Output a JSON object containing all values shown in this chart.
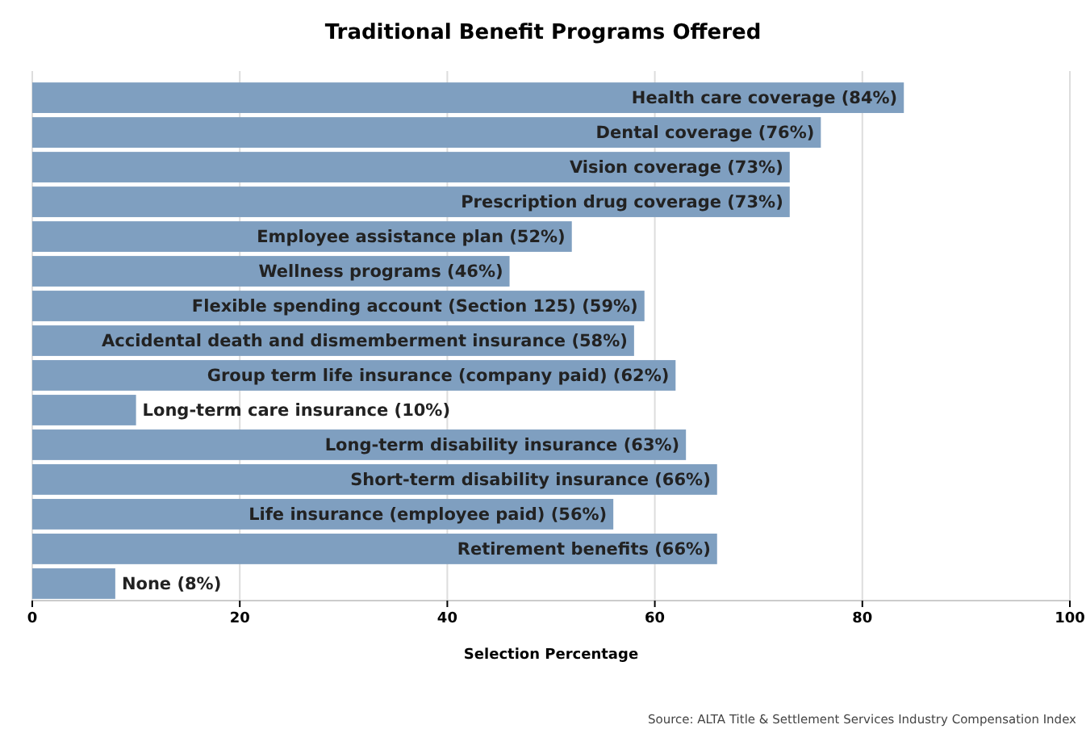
{
  "chart_data": {
    "type": "bar",
    "orientation": "horizontal",
    "title": "Traditional Benefit Programs Offered",
    "xlabel": "Selection Percentage",
    "categories": [
      "Health care coverage",
      "Dental coverage",
      "Vision coverage",
      "Prescription drug coverage",
      "Employee assistance plan",
      "Wellness programs",
      "Flexible spending account (Section 125)",
      "Accidental death and dismemberment insurance",
      "Group term life insurance (company paid)",
      "Long-term care insurance",
      "Long-term disability insurance",
      "Short-term disability insurance",
      "Life insurance (employee paid)",
      "Retirement benefits",
      "None"
    ],
    "values": [
      84,
      76,
      73,
      73,
      52,
      46,
      59,
      58,
      62,
      10,
      63,
      66,
      56,
      66,
      8
    ],
    "value_labels": [
      "(84%)",
      "(76%)",
      "(73%)",
      "(73%)",
      "(52%)",
      "(46%)",
      "(59%)",
      "(58%)",
      "(62%)",
      "(10%)",
      "(63%)",
      "(66%)",
      "(56%)",
      "(66%)",
      "(8%)"
    ],
    "color": "#7f9fc0",
    "xlim": [
      0,
      100
    ],
    "xticks": [
      0,
      20,
      40,
      60,
      80,
      100
    ],
    "grid": "x",
    "annotations": [
      "Source: ALTA Title & Settlement Services Industry Compensation Index"
    ]
  }
}
